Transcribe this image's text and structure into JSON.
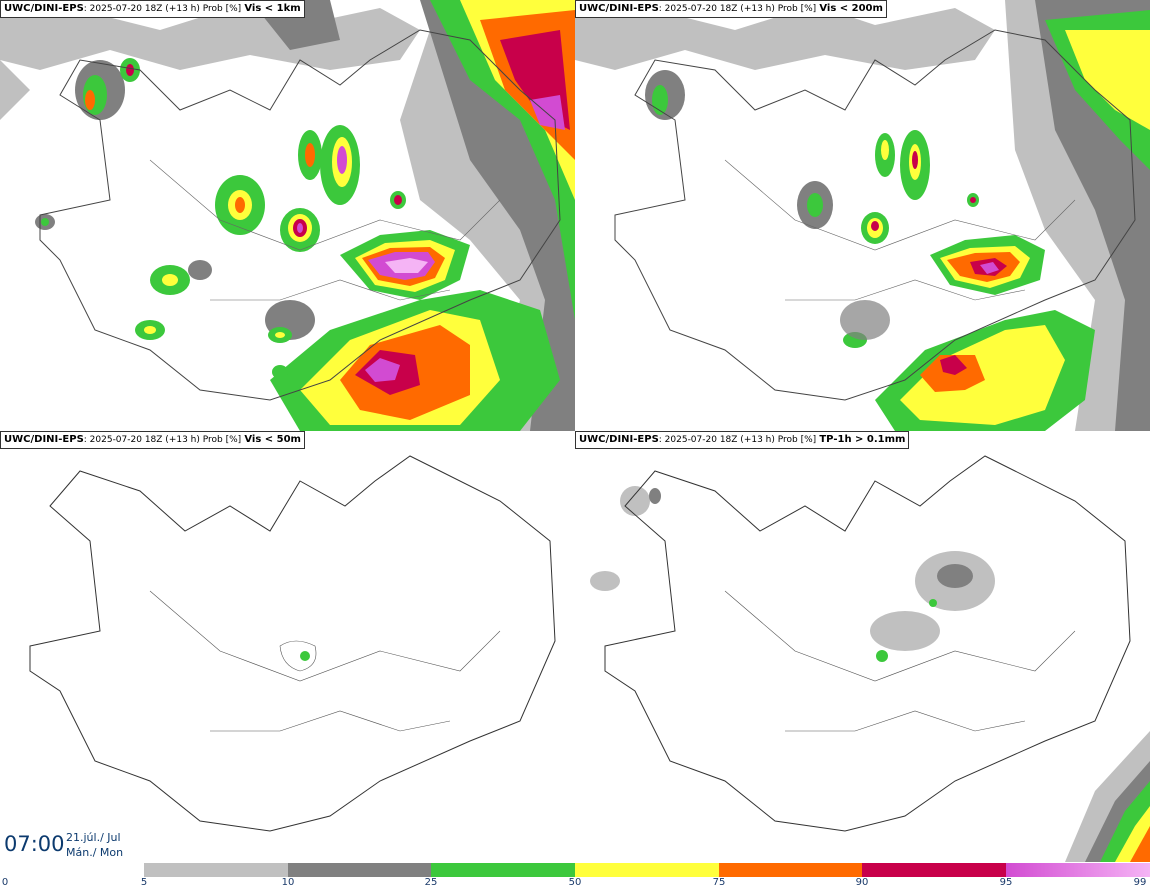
{
  "panels": [
    {
      "id": "tl",
      "source": "UWC/DINI-EPS",
      "run": ": 2025-07-20 18Z (+13 h) Prob [%]",
      "variable": "Vis < 1km"
    },
    {
      "id": "tr",
      "source": "UWC/DINI-EPS",
      "run": ": 2025-07-20 18Z (+13 h) Prob [%]",
      "variable": "Vis < 200m"
    },
    {
      "id": "bl",
      "source": "UWC/DINI-EPS",
      "run": ": 2025-07-20 18Z (+13 h) Prob [%]",
      "variable": "Vis < 50m"
    },
    {
      "id": "br",
      "source": "UWC/DINI-EPS",
      "run": ": 2025-07-20 18Z (+13 h) Prob [%]",
      "variable": "TP-1h > 0.1mm"
    }
  ],
  "time": {
    "clock": "07:00",
    "date_line": "21.júl./ Jul",
    "day_line": "Mán./ Mon"
  },
  "legend": {
    "ticks": [
      "0",
      "5",
      "10",
      "25",
      "50",
      "75",
      "90",
      "95",
      "99"
    ],
    "colors": [
      "#c0c0c0",
      "#808080",
      "#3cc83c",
      "#ffff3c",
      "#ff6a00",
      "#c8004a",
      "#d24bd2",
      "#f5b4f5"
    ]
  }
}
